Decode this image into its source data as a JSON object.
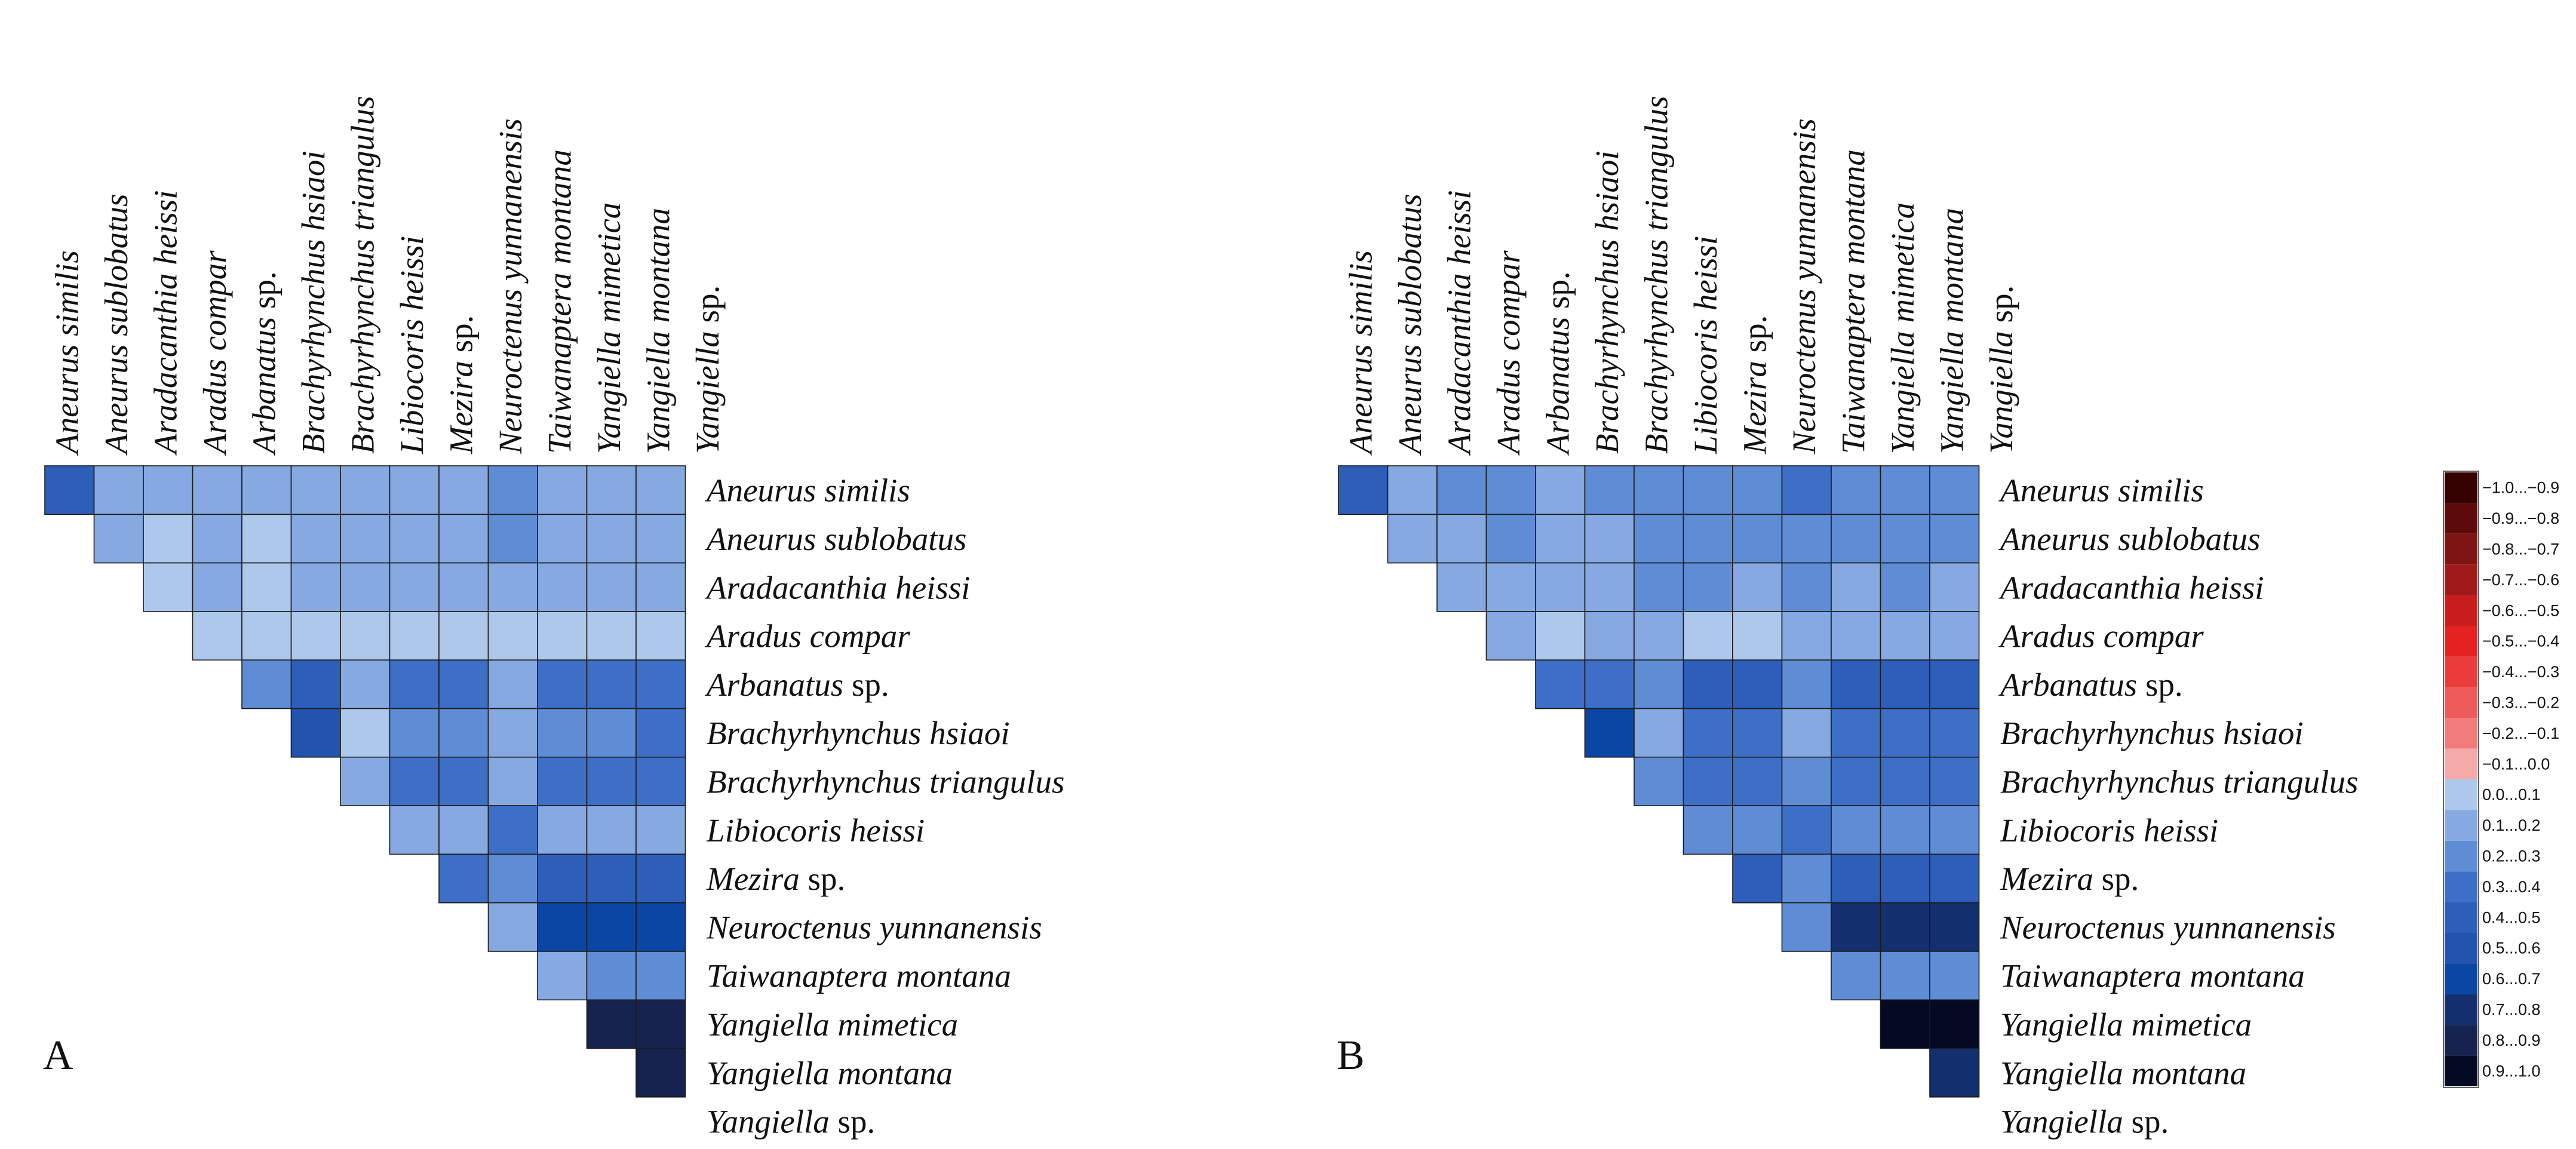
{
  "chart_data": [
    {
      "type": "heatmap",
      "panel_label": "A",
      "species": [
        {
          "genus": "Aneurus",
          "rest": "similis",
          "rest_italic": true
        },
        {
          "genus": "Aneurus",
          "rest": "sublobatus",
          "rest_italic": true
        },
        {
          "genus": "Aradacanthia",
          "rest": "heissi",
          "rest_italic": true
        },
        {
          "genus": "Aradus",
          "rest": "compar",
          "rest_italic": true
        },
        {
          "genus": "Arbanatus",
          "rest": "sp.",
          "rest_italic": false
        },
        {
          "genus": "Brachyrhynchus",
          "rest": "hsiaoi",
          "rest_italic": true
        },
        {
          "genus": "Brachyrhynchus",
          "rest": "triangulus",
          "rest_italic": true
        },
        {
          "genus": "Libiocoris",
          "rest": "heissi",
          "rest_italic": true
        },
        {
          "genus": "Mezira",
          "rest": "sp.",
          "rest_italic": false
        },
        {
          "genus": "Neuroctenus",
          "rest": "yunnanensis",
          "rest_italic": true
        },
        {
          "genus": "Taiwanaptera",
          "rest": "montana",
          "rest_italic": true
        },
        {
          "genus": "Yangiella",
          "rest": "mimetica",
          "rest_italic": true
        },
        {
          "genus": "Yangiella",
          "rest": "montana",
          "rest_italic": true
        },
        {
          "genus": "Yangiella",
          "rest": "sp.",
          "rest_italic": false
        }
      ],
      "matrix": [
        [
          0.45,
          0.15,
          0.15,
          0.15,
          0.15,
          0.15,
          0.15,
          0.15,
          0.15,
          0.25,
          0.15,
          0.15,
          0.15
        ],
        [
          0.15,
          0.05,
          0.15,
          0.05,
          0.15,
          0.15,
          0.15,
          0.15,
          0.25,
          0.15,
          0.15,
          0.15
        ],
        [
          0.05,
          0.15,
          0.05,
          0.15,
          0.15,
          0.15,
          0.15,
          0.15,
          0.15,
          0.15,
          0.15
        ],
        [
          0.05,
          0.05,
          0.05,
          0.05,
          0.05,
          0.05,
          0.05,
          0.05,
          0.05,
          0.05
        ],
        [
          0.25,
          0.45,
          0.15,
          0.35,
          0.35,
          0.15,
          0.35,
          0.35,
          0.35
        ],
        [
          0.55,
          0.05,
          0.25,
          0.25,
          0.15,
          0.25,
          0.25,
          0.35
        ],
        [
          0.15,
          0.35,
          0.35,
          0.15,
          0.35,
          0.35,
          0.35
        ],
        [
          0.15,
          0.15,
          0.35,
          0.15,
          0.15,
          0.15
        ],
        [
          0.35,
          0.25,
          0.45,
          0.45,
          0.45
        ],
        [
          0.15,
          0.65,
          0.65,
          0.65
        ],
        [
          0.15,
          0.25,
          0.25
        ],
        [
          0.85,
          0.85
        ],
        [
          0.85
        ]
      ]
    },
    {
      "type": "heatmap",
      "panel_label": "B",
      "species": [
        {
          "genus": "Aneurus",
          "rest": "similis",
          "rest_italic": true
        },
        {
          "genus": "Aneurus",
          "rest": "sublobatus",
          "rest_italic": true
        },
        {
          "genus": "Aradacanthia",
          "rest": "heissi",
          "rest_italic": true
        },
        {
          "genus": "Aradus",
          "rest": "compar",
          "rest_italic": true
        },
        {
          "genus": "Arbanatus",
          "rest": "sp.",
          "rest_italic": false
        },
        {
          "genus": "Brachyrhynchus",
          "rest": "hsiaoi",
          "rest_italic": true
        },
        {
          "genus": "Brachyrhynchus",
          "rest": "triangulus",
          "rest_italic": true
        },
        {
          "genus": "Libiocoris",
          "rest": "heissi",
          "rest_italic": true
        },
        {
          "genus": "Mezira",
          "rest": "sp.",
          "rest_italic": false
        },
        {
          "genus": "Neuroctenus",
          "rest": "yunnanensis",
          "rest_italic": true
        },
        {
          "genus": "Taiwanaptera",
          "rest": "montana",
          "rest_italic": true
        },
        {
          "genus": "Yangiella",
          "rest": "mimetica",
          "rest_italic": true
        },
        {
          "genus": "Yangiella",
          "rest": "montana",
          "rest_italic": true
        },
        {
          "genus": "Yangiella",
          "rest": "sp.",
          "rest_italic": false
        }
      ],
      "matrix": [
        [
          0.45,
          0.15,
          0.25,
          0.25,
          0.15,
          0.25,
          0.25,
          0.25,
          0.25,
          0.35,
          0.25,
          0.25,
          0.25
        ],
        [
          0.15,
          0.15,
          0.25,
          0.15,
          0.15,
          0.25,
          0.25,
          0.25,
          0.25,
          0.25,
          0.25,
          0.25
        ],
        [
          0.15,
          0.15,
          0.15,
          0.15,
          0.25,
          0.25,
          0.15,
          0.25,
          0.15,
          0.25,
          0.15
        ],
        [
          0.15,
          0.05,
          0.15,
          0.15,
          0.05,
          0.05,
          0.15,
          0.15,
          0.15,
          0.15
        ],
        [
          0.35,
          0.35,
          0.25,
          0.45,
          0.45,
          0.25,
          0.45,
          0.45,
          0.45
        ],
        [
          0.65,
          0.15,
          0.35,
          0.35,
          0.15,
          0.35,
          0.35,
          0.35
        ],
        [
          0.25,
          0.35,
          0.35,
          0.25,
          0.35,
          0.35,
          0.35
        ],
        [
          0.25,
          0.25,
          0.35,
          0.25,
          0.25,
          0.25
        ],
        [
          0.45,
          0.25,
          0.45,
          0.45,
          0.45
        ],
        [
          0.25,
          0.75,
          0.75,
          0.75
        ],
        [
          0.25,
          0.25,
          0.25
        ],
        [
          0.95,
          0.95
        ],
        [
          0.75
        ]
      ]
    }
  ],
  "legend": {
    "items": [
      {
        "label": "−1.0...−0.9",
        "color": "#350000"
      },
      {
        "label": "−0.9...−0.8",
        "color": "#5c0a0a"
      },
      {
        "label": "−0.8...−0.7",
        "color": "#7e1414"
      },
      {
        "label": "−0.7...−0.6",
        "color": "#a01a1a"
      },
      {
        "label": "−0.6...−0.5",
        "color": "#c81d1d"
      },
      {
        "label": "−0.5...−0.4",
        "color": "#e52222"
      },
      {
        "label": "−0.4...−0.3",
        "color": "#ec3b3b"
      },
      {
        "label": "−0.3...−0.2",
        "color": "#ef5a5a"
      },
      {
        "label": "−0.2...−0.1",
        "color": "#f27b7b"
      },
      {
        "label": "−0.1...0.0",
        "color": "#f5aaaa"
      },
      {
        "label": "0.0...0.1",
        "color": "#aec8eb"
      },
      {
        "label": "0.1...0.2",
        "color": "#85a9e0"
      },
      {
        "label": "0.2...0.3",
        "color": "#5f8dd5"
      },
      {
        "label": "0.3...0.4",
        "color": "#3e6fc6"
      },
      {
        "label": "0.4...0.5",
        "color": "#2d5fba"
      },
      {
        "label": "0.5...0.6",
        "color": "#2253ae"
      },
      {
        "label": "0.6...0.7",
        "color": "#0a46a3"
      },
      {
        "label": "0.7...0.8",
        "color": "#132f6e"
      },
      {
        "label": "0.8...0.9",
        "color": "#15234f"
      },
      {
        "label": "0.9...1.0",
        "color": "#050a24"
      }
    ]
  }
}
